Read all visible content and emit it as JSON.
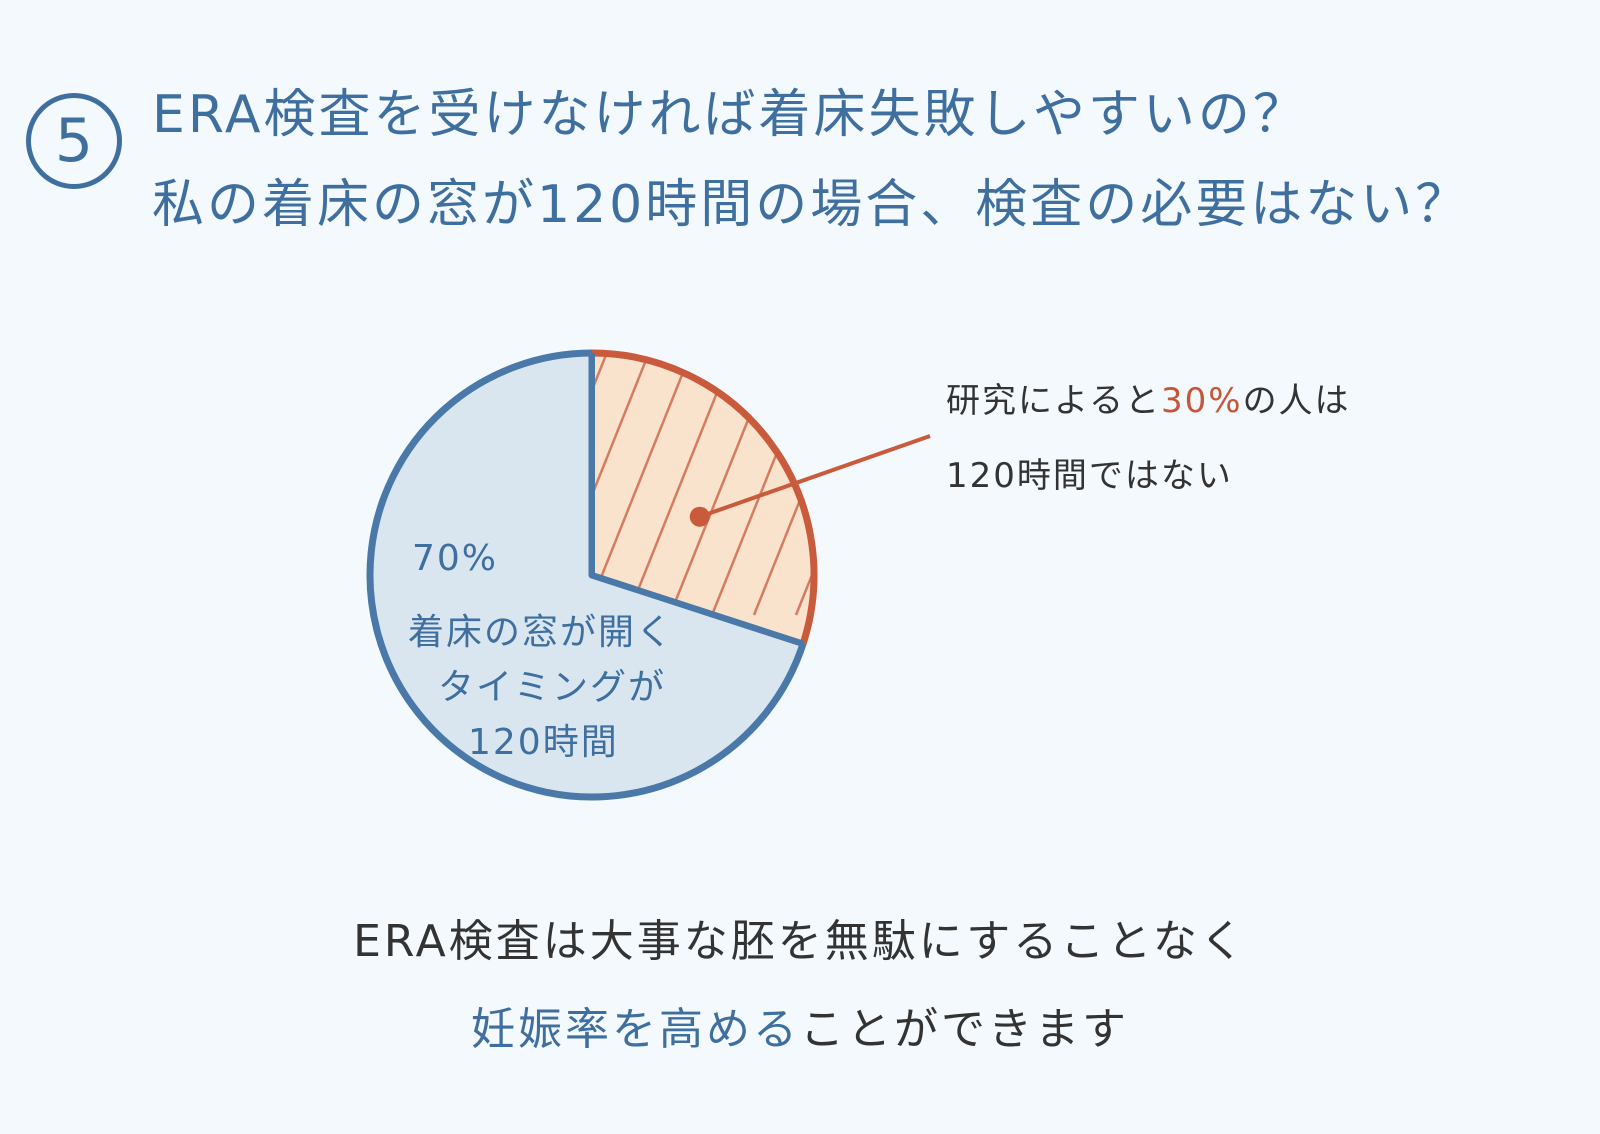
{
  "header": {
    "number": "5",
    "title_line1": "ERA検査を受けなければ着床失敗しやすいの？",
    "title_line2": "私の着床の窓が120時間の場合、検査の必要はない？"
  },
  "chart_data": {
    "type": "pie",
    "slices": [
      {
        "label": "着床の窓が開くタイミングが120時間",
        "value": 70
      },
      {
        "label": "120時間ではない",
        "value": 30
      }
    ],
    "colors": {
      "slice_70": "#d9e6f0",
      "slice_70_border": "#4a78a8",
      "slice_30": "#fae3cc",
      "slice_30_border": "#c95a3c"
    },
    "legend": "none"
  },
  "labels": {
    "pct70": "70%",
    "line_a": "着床の窓が開く",
    "line_b": "タイミングが",
    "line_c": "120時間",
    "callout_prefix": "研究によると",
    "callout_pct": "30%",
    "callout_suffix": "の人は",
    "callout_line2": "120時間ではない"
  },
  "footer": {
    "line1": "ERA検査は大事な胚を無駄にすることなく",
    "line2_blue": "妊娠率を高める",
    "line2_dark": "ことができます"
  }
}
